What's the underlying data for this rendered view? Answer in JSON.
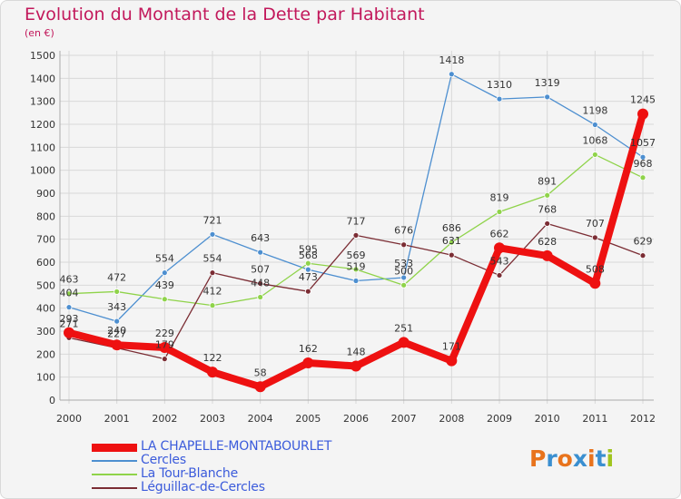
{
  "title": "Evolution du Montant de la Dette par Habitant",
  "subtitle": "(en €)",
  "logo": {
    "text": "Proxiti",
    "letter_colors": [
      "#e8731c",
      "#3a8fd0",
      "#e8731c",
      "#3a8fd0",
      "#e8731c",
      "#3a8fd0",
      "#a0c41e"
    ]
  },
  "chart_data": {
    "type": "line",
    "title": "Evolution du Montant de la Dette par Habitant",
    "ylabel": "(en €)",
    "x": [
      "2000",
      "2001",
      "2002",
      "2003",
      "2004",
      "2005",
      "2006",
      "2007",
      "2008",
      "2009",
      "2010",
      "2011",
      "2012"
    ],
    "ylim": [
      0,
      1500
    ],
    "yticks": [
      0,
      100,
      200,
      300,
      400,
      500,
      600,
      700,
      800,
      900,
      1000,
      1100,
      1200,
      1300,
      1400,
      1500
    ],
    "grid": true,
    "legend_position": "bottom-left",
    "series": [
      {
        "name": "LA CHAPELLE-MONTABOURLET",
        "color": "#ee1111",
        "emphasis": true,
        "values": [
          293,
          240,
          229,
          122,
          58,
          162,
          148,
          251,
          171,
          662,
          628,
          508,
          1245
        ]
      },
      {
        "name": "Cercles",
        "color": "#4d8fd0",
        "values": [
          404,
          343,
          554,
          721,
          643,
          568,
          519,
          533,
          1418,
          1310,
          1319,
          1198,
          1057
        ]
      },
      {
        "name": "La Tour-Blanche",
        "color": "#8fd34a",
        "values": [
          463,
          472,
          439,
          412,
          448,
          595,
          569,
          500,
          686,
          819,
          891,
          1068,
          968
        ]
      },
      {
        "name": "Léguillac-de-Cercles",
        "color": "#7b2d34",
        "values": [
          271,
          227,
          179,
          554,
          507,
          473,
          717,
          676,
          631,
          543,
          768,
          707,
          629
        ]
      }
    ]
  }
}
